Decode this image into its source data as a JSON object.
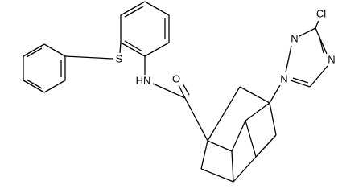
{
  "atoms": [
    {
      "label": "Cl"
    },
    {
      "label": "N"
    },
    {
      "label": "N"
    },
    {
      "label": "N"
    },
    {
      "label": "S"
    },
    {
      "label": "HN"
    },
    {
      "label": "O"
    }
  ]
}
